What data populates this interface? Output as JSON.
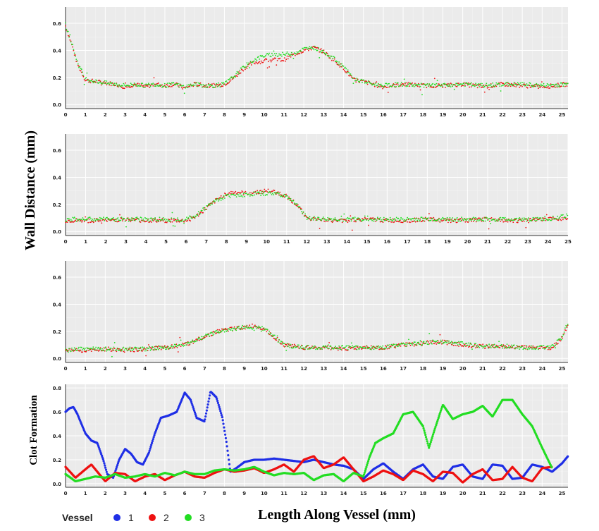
{
  "figure": {
    "ylabel_top": "Wall Distance (mm)",
    "ylabel_bottom": "Clot Formation",
    "xlabel": "Length Along Vessel (mm)",
    "legend_title": "Vessel"
  },
  "colors": {
    "v1": "#1f2fe6",
    "v2": "#ee1111",
    "v3": "#22dd22",
    "panel_bg": "#ebebeb",
    "grid": "#ffffff"
  },
  "chart_data": [
    {
      "type": "scatter",
      "panel": 1,
      "x_ticks": [
        "0",
        "1",
        "2",
        "3",
        "4",
        "5",
        "6",
        "7",
        "8",
        "9",
        "10",
        "11",
        "12",
        "13",
        "14",
        "15",
        "16",
        "17",
        "18",
        "19",
        "20",
        "21",
        "22",
        "23",
        "24",
        "25"
      ],
      "y_ticks": [
        "0.0",
        "0.2",
        "0.4",
        "0.6"
      ],
      "xlim": [
        0,
        25.3
      ],
      "ylim": [
        -0.03,
        0.72
      ],
      "series": [
        {
          "color": "#ee1111",
          "x": [
            0,
            0.3,
            0.6,
            1,
            1.5,
            2,
            2.5,
            3,
            3.5,
            4,
            4.5,
            5,
            5.5,
            6,
            6.5,
            7,
            7.5,
            8,
            8.5,
            9,
            9.5,
            10,
            10.5,
            11,
            11.5,
            12,
            12.5,
            13,
            13.5,
            14,
            14.5,
            15,
            15.5,
            16,
            17,
            18,
            19,
            20,
            21,
            22,
            23,
            24,
            25.3
          ],
          "y": [
            0.58,
            0.45,
            0.3,
            0.18,
            0.17,
            0.16,
            0.15,
            0.13,
            0.15,
            0.13,
            0.15,
            0.14,
            0.15,
            0.12,
            0.15,
            0.14,
            0.14,
            0.15,
            0.2,
            0.27,
            0.31,
            0.32,
            0.33,
            0.33,
            0.37,
            0.4,
            0.42,
            0.39,
            0.33,
            0.27,
            0.18,
            0.17,
            0.15,
            0.13,
            0.15,
            0.14,
            0.14,
            0.15,
            0.13,
            0.15,
            0.14,
            0.13,
            0.15
          ]
        },
        {
          "color": "#22dd22",
          "x": [
            0,
            0.3,
            0.6,
            1,
            1.5,
            2,
            2.5,
            3,
            3.5,
            4,
            4.5,
            5,
            5.5,
            6,
            6.5,
            7,
            7.5,
            8,
            8.5,
            9,
            9.5,
            10,
            10.5,
            11,
            11.5,
            12,
            12.5,
            13,
            13.5,
            14,
            14.5,
            15,
            15.5,
            16,
            17,
            18,
            19,
            20,
            21,
            22,
            23,
            24,
            25.3
          ],
          "y": [
            0.59,
            0.46,
            0.31,
            0.19,
            0.17,
            0.16,
            0.15,
            0.14,
            0.15,
            0.14,
            0.15,
            0.14,
            0.15,
            0.13,
            0.15,
            0.14,
            0.14,
            0.15,
            0.21,
            0.28,
            0.33,
            0.36,
            0.37,
            0.37,
            0.38,
            0.41,
            0.42,
            0.39,
            0.34,
            0.28,
            0.19,
            0.17,
            0.15,
            0.14,
            0.15,
            0.14,
            0.14,
            0.15,
            0.14,
            0.15,
            0.15,
            0.14,
            0.15
          ]
        }
      ]
    },
    {
      "type": "scatter",
      "panel": 2,
      "x_ticks": [
        "0",
        "1",
        "2",
        "3",
        "4",
        "5",
        "6",
        "7",
        "8",
        "9",
        "10",
        "11",
        "12",
        "13",
        "14",
        "15",
        "16",
        "17",
        "18",
        "19",
        "20",
        "21",
        "22",
        "23",
        "24",
        "25"
      ],
      "y_ticks": [
        "0.0",
        "0.2",
        "0.4",
        "0.6"
      ],
      "xlim": [
        0,
        25
      ],
      "ylim": [
        -0.03,
        0.72
      ],
      "series": [
        {
          "color": "#ee1111",
          "x": [
            0,
            1,
            2,
            3,
            4,
            5,
            6,
            6.5,
            7,
            7.5,
            8,
            8.5,
            9,
            9.5,
            10,
            10.5,
            11,
            11.5,
            12,
            13,
            14,
            15,
            16,
            17,
            18,
            19,
            20,
            21,
            22,
            23,
            24,
            25
          ],
          "y": [
            0.08,
            0.08,
            0.08,
            0.09,
            0.08,
            0.08,
            0.08,
            0.11,
            0.17,
            0.23,
            0.28,
            0.29,
            0.28,
            0.29,
            0.3,
            0.29,
            0.26,
            0.2,
            0.1,
            0.08,
            0.08,
            0.09,
            0.08,
            0.08,
            0.09,
            0.08,
            0.08,
            0.09,
            0.08,
            0.08,
            0.09,
            0.1
          ]
        },
        {
          "color": "#22dd22",
          "x": [
            0,
            1,
            2,
            3,
            4,
            5,
            6,
            6.5,
            7,
            7.5,
            8,
            8.5,
            9,
            9.5,
            10,
            10.5,
            11,
            11.5,
            12,
            13,
            14,
            15,
            16,
            17,
            18,
            19,
            20,
            21,
            22,
            23,
            24,
            25
          ],
          "y": [
            0.09,
            0.09,
            0.09,
            0.09,
            0.09,
            0.09,
            0.09,
            0.12,
            0.18,
            0.23,
            0.26,
            0.27,
            0.27,
            0.28,
            0.28,
            0.28,
            0.26,
            0.2,
            0.1,
            0.09,
            0.09,
            0.09,
            0.09,
            0.09,
            0.09,
            0.09,
            0.09,
            0.09,
            0.09,
            0.09,
            0.09,
            0.12
          ]
        }
      ]
    },
    {
      "type": "scatter",
      "panel": 3,
      "x_ticks": [
        "0",
        "1",
        "2",
        "3",
        "4",
        "5",
        "6",
        "7",
        "8",
        "9",
        "10",
        "11",
        "12",
        "13",
        "14",
        "15",
        "16",
        "17",
        "18",
        "19",
        "20",
        "21",
        "22",
        "23",
        "24",
        "25"
      ],
      "y_ticks": [
        "0.0",
        "0.2",
        "0.4",
        "0.6"
      ],
      "xlim": [
        0,
        25.3
      ],
      "ylim": [
        -0.03,
        0.72
      ],
      "series": [
        {
          "color": "#ee1111",
          "x": [
            0,
            1,
            2,
            3,
            4,
            5,
            6,
            6.5,
            7,
            7.5,
            8,
            8.5,
            9,
            9.5,
            10,
            10.5,
            11,
            12,
            13,
            14,
            15,
            16,
            17,
            18,
            18.5,
            19,
            20,
            21,
            22,
            23,
            24,
            24.5,
            25,
            25.3
          ],
          "y": [
            0.06,
            0.06,
            0.07,
            0.06,
            0.07,
            0.08,
            0.1,
            0.13,
            0.16,
            0.19,
            0.21,
            0.22,
            0.23,
            0.24,
            0.22,
            0.16,
            0.1,
            0.08,
            0.08,
            0.07,
            0.08,
            0.08,
            0.1,
            0.11,
            0.12,
            0.12,
            0.1,
            0.09,
            0.09,
            0.08,
            0.08,
            0.08,
            0.15,
            0.25
          ]
        },
        {
          "color": "#22dd22",
          "x": [
            0,
            1,
            2,
            3,
            4,
            5,
            6,
            6.5,
            7,
            7.5,
            8,
            8.5,
            9,
            9.5,
            10,
            10.5,
            11,
            12,
            13,
            14,
            15,
            16,
            17,
            18,
            18.5,
            19,
            20,
            21,
            22,
            23,
            24,
            24.5,
            25,
            25.3
          ],
          "y": [
            0.06,
            0.07,
            0.07,
            0.07,
            0.07,
            0.08,
            0.1,
            0.13,
            0.16,
            0.19,
            0.21,
            0.22,
            0.23,
            0.23,
            0.22,
            0.16,
            0.1,
            0.08,
            0.08,
            0.08,
            0.08,
            0.08,
            0.1,
            0.11,
            0.12,
            0.12,
            0.11,
            0.09,
            0.09,
            0.08,
            0.08,
            0.09,
            0.15,
            0.27
          ]
        }
      ]
    },
    {
      "type": "line",
      "panel": 4,
      "x_ticks": [
        "0",
        "1",
        "2",
        "3",
        "4",
        "5",
        "6",
        "7",
        "8",
        "9",
        "10",
        "11",
        "12",
        "13",
        "14",
        "15",
        "16",
        "17",
        "18",
        "19",
        "20",
        "21",
        "22",
        "23",
        "24",
        "25"
      ],
      "y_ticks": [
        "0.0",
        "0.2",
        "0.4",
        "0.6",
        "0.8"
      ],
      "xlim": [
        0,
        25.3
      ],
      "ylim": [
        -0.03,
        0.83
      ],
      "series": [
        {
          "name": "1",
          "color": "#1f2fe6",
          "x": [
            0,
            0.2,
            0.4,
            0.6,
            0.8,
            1,
            1.3,
            1.6,
            1.9,
            2.1,
            2.4,
            2.7,
            3,
            3.3,
            3.6,
            3.9,
            4.2,
            4.5,
            4.8,
            5.2,
            5.6,
            6,
            6.3,
            6.6,
            7,
            7.3,
            7.6,
            7.9,
            8.1,
            8.3,
            8.6,
            9,
            9.5,
            10,
            10.5,
            11,
            11.5,
            12,
            12.5,
            13,
            13.5,
            14,
            14.5,
            15,
            15.5,
            16,
            16.5,
            17,
            17.5,
            18,
            18.5,
            19,
            19.5,
            20,
            20.5,
            21,
            21.5,
            22,
            22.5,
            23,
            23.5,
            24,
            24.5,
            25,
            25.3
          ],
          "y": [
            0.6,
            0.63,
            0.64,
            0.58,
            0.5,
            0.42,
            0.36,
            0.34,
            0.2,
            0.08,
            0.05,
            0.2,
            0.29,
            0.25,
            0.18,
            0.16,
            0.26,
            0.42,
            0.55,
            0.57,
            0.6,
            0.76,
            0.7,
            0.55,
            0.52,
            0.77,
            0.72,
            0.55,
            0.35,
            0.1,
            0.13,
            0.18,
            0.2,
            0.2,
            0.21,
            0.2,
            0.19,
            0.18,
            0.2,
            0.18,
            0.16,
            0.15,
            0.12,
            0.04,
            0.12,
            0.17,
            0.1,
            0.04,
            0.12,
            0.16,
            0.06,
            0.04,
            0.14,
            0.16,
            0.06,
            0.04,
            0.16,
            0.15,
            0.04,
            0.05,
            0.16,
            0.14,
            0.1,
            0.17,
            0.23
          ]
        },
        {
          "name": "2",
          "color": "#ee1111",
          "x": [
            0,
            0.5,
            1,
            1.3,
            1.6,
            2,
            2.5,
            3,
            3.5,
            4,
            4.5,
            5,
            5.5,
            6,
            6.5,
            7,
            7.5,
            8,
            8.5,
            9,
            9.5,
            10,
            10.5,
            11,
            11.5,
            12,
            12.5,
            13,
            13.5,
            14,
            14.5,
            15,
            15.5,
            16,
            16.5,
            17,
            17.5,
            18,
            18.5,
            19,
            19.5,
            20,
            20.5,
            21,
            21.5,
            22,
            22.5,
            23,
            23.5,
            24,
            24.5
          ],
          "y": [
            0.14,
            0.05,
            0.12,
            0.16,
            0.1,
            0.02,
            0.09,
            0.08,
            0.02,
            0.06,
            0.08,
            0.03,
            0.07,
            0.1,
            0.06,
            0.05,
            0.09,
            0.12,
            0.1,
            0.11,
            0.13,
            0.09,
            0.12,
            0.16,
            0.1,
            0.2,
            0.23,
            0.13,
            0.16,
            0.22,
            0.12,
            0.02,
            0.06,
            0.11,
            0.08,
            0.03,
            0.11,
            0.08,
            0.02,
            0.1,
            0.09,
            0.01,
            0.08,
            0.12,
            0.03,
            0.04,
            0.14,
            0.05,
            0.02,
            0.13,
            0.14
          ]
        },
        {
          "name": "3",
          "color": "#22dd22",
          "x": [
            0,
            0.5,
            1,
            1.5,
            2,
            2.5,
            3,
            3.5,
            4,
            4.5,
            5,
            5.5,
            6,
            6.5,
            7,
            7.5,
            8,
            8.5,
            9,
            9.5,
            10,
            10.5,
            11,
            11.5,
            12,
            12.5,
            13,
            13.5,
            14,
            14.5,
            15,
            15.3,
            15.6,
            16,
            16.5,
            17,
            17.5,
            18,
            18.3,
            18.6,
            19,
            19.5,
            20,
            20.5,
            21,
            21.5,
            22,
            22.5,
            23,
            23.5,
            24,
            24.5
          ],
          "y": [
            0.08,
            0.02,
            0.04,
            0.06,
            0.05,
            0.08,
            0.05,
            0.06,
            0.08,
            0.06,
            0.09,
            0.07,
            0.1,
            0.08,
            0.08,
            0.11,
            0.12,
            0.11,
            0.12,
            0.14,
            0.1,
            0.07,
            0.09,
            0.08,
            0.09,
            0.03,
            0.07,
            0.08,
            0.02,
            0.09,
            0.06,
            0.22,
            0.34,
            0.38,
            0.42,
            0.58,
            0.6,
            0.48,
            0.3,
            0.46,
            0.66,
            0.54,
            0.58,
            0.6,
            0.65,
            0.56,
            0.7,
            0.7,
            0.58,
            0.48,
            0.3,
            0.13
          ]
        }
      ]
    }
  ],
  "legend": [
    {
      "label": "1",
      "color": "#1f2fe6"
    },
    {
      "label": "2",
      "color": "#ee1111"
    },
    {
      "label": "3",
      "color": "#22dd22"
    }
  ]
}
